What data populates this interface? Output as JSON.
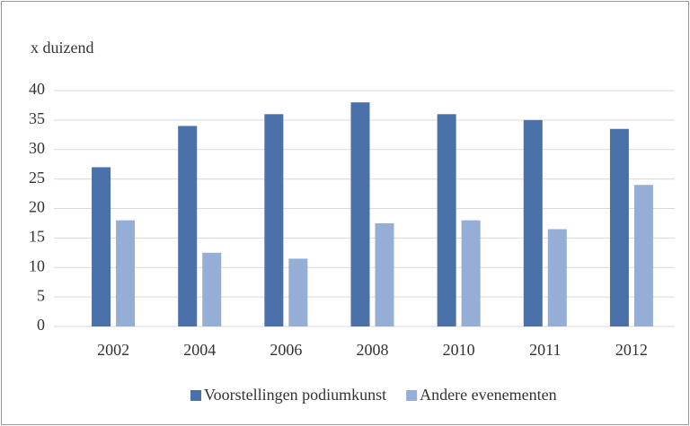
{
  "chart_data": {
    "type": "bar",
    "y_label": "x duizend",
    "categories": [
      "2002",
      "2004",
      "2006",
      "2008",
      "2010",
      "2011",
      "2012"
    ],
    "series": [
      {
        "name": "Voorstellingen podiumkunst",
        "color": "#4a71a8",
        "values": [
          27,
          34,
          36,
          38,
          36,
          35,
          33.5
        ]
      },
      {
        "name": "Andere evenementen",
        "color": "#95aed6",
        "values": [
          18,
          12.5,
          11.5,
          17.5,
          18,
          16.5,
          24
        ]
      }
    ],
    "ylim": [
      0,
      40
    ],
    "yticks": [
      0,
      5,
      10,
      15,
      20,
      25,
      30,
      35,
      40
    ],
    "grid": true,
    "legend": "bottom"
  }
}
